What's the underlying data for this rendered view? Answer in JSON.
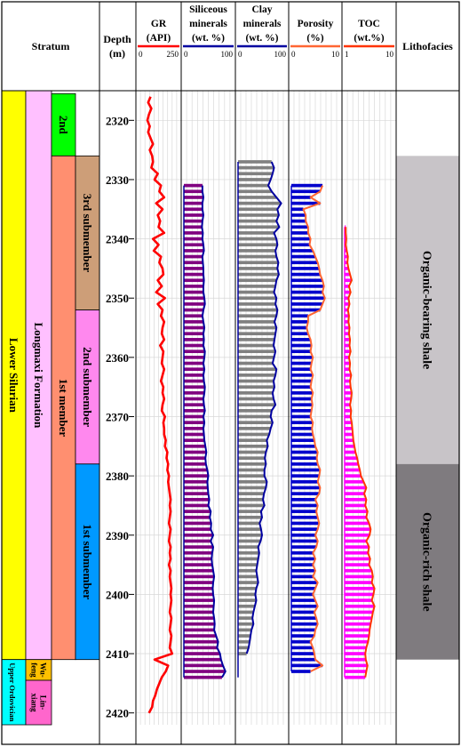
{
  "chart_data": {
    "type": "well-log",
    "y_axis": {
      "label_line1": "Depth",
      "label_line2": "(m)",
      "min": 2315,
      "max": 2422,
      "ticks": [
        2320,
        2330,
        2340,
        2350,
        2360,
        2370,
        2380,
        2390,
        2400,
        2410,
        2420
      ]
    },
    "headers": {
      "stratum": "Stratum",
      "lithofacies": "Lithofacies"
    },
    "stratum_units": [
      {
        "label": "Lower Silurian",
        "top": 2315,
        "base": 2411,
        "color": "#ffff00"
      },
      {
        "label": "Upper Ordovician",
        "top": 2411,
        "base": 2422,
        "color": "#00ffff"
      },
      {
        "label": "Longmaxi Formation",
        "top": 2315,
        "base": 2411,
        "color": "#ffc0ff"
      },
      {
        "label": "Wu-feng",
        "top": 2411,
        "base": 2414.5,
        "color": "#ffc000"
      },
      {
        "label": "Lin-xiang",
        "top": 2414.5,
        "base": 2422,
        "color": "#ff66cc"
      },
      {
        "label": "2nd",
        "top": 2315,
        "base": 2326,
        "color": "#00ff00"
      },
      {
        "label": "1st member",
        "top": 2326,
        "base": 2411,
        "color": "#ff8f70"
      },
      {
        "label": "3rd submember",
        "top": 2326,
        "base": 2352,
        "color": "#cd9e78"
      },
      {
        "label": "2nd submember",
        "top": 2352,
        "base": 2378,
        "color": "#ff88ee"
      },
      {
        "label": "1st submember",
        "top": 2378,
        "base": 2411,
        "color": "#0099ff"
      }
    ],
    "tracks": [
      {
        "name": "GR",
        "unit": "(API)",
        "min": 0,
        "max": 250,
        "min_label": "0",
        "max_label": "250",
        "color": "#ff0000",
        "depths": [
          2316,
          2317,
          2318,
          2319,
          2320,
          2321,
          2322,
          2323,
          2324,
          2325,
          2326,
          2327,
          2328,
          2329,
          2330,
          2331,
          2332,
          2333,
          2334,
          2335,
          2336,
          2337,
          2338,
          2339,
          2340,
          2341,
          2342,
          2343,
          2344,
          2345,
          2346,
          2347,
          2348,
          2349,
          2350,
          2351,
          2352,
          2353,
          2354,
          2355,
          2356,
          2357,
          2358,
          2359,
          2360,
          2361,
          2362,
          2363,
          2364,
          2365,
          2366,
          2367,
          2368,
          2369,
          2370,
          2371,
          2372,
          2373,
          2374,
          2375,
          2376,
          2377,
          2378,
          2379,
          2380,
          2381,
          2382,
          2383,
          2384,
          2385,
          2386,
          2387,
          2388,
          2389,
          2390,
          2391,
          2392,
          2393,
          2394,
          2395,
          2396,
          2397,
          2398,
          2399,
          2400,
          2401,
          2402,
          2403,
          2404,
          2405,
          2406,
          2407,
          2408,
          2409,
          2410,
          2411,
          2412,
          2413,
          2414,
          2415,
          2416,
          2417,
          2418,
          2419,
          2420
        ],
        "values": [
          75,
          60,
          80,
          65,
          55,
          70,
          60,
          75,
          90,
          70,
          85,
          90,
          80,
          120,
          100,
          140,
          130,
          160,
          110,
          150,
          120,
          135,
          125,
          160,
          90,
          125,
          95,
          140,
          130,
          150,
          155,
          120,
          145,
          110,
          165,
          120,
          150,
          140,
          160,
          150,
          145,
          160,
          135,
          155,
          150,
          145,
          160,
          150,
          140,
          155,
          150,
          160,
          150,
          145,
          165,
          155,
          160,
          160,
          170,
          165,
          180,
          175,
          185,
          180,
          190,
          185,
          190,
          195,
          200,
          195,
          200,
          195,
          190,
          200,
          195,
          190,
          200,
          195,
          200,
          190,
          200,
          195,
          200,
          205,
          200,
          205,
          200,
          195,
          205,
          200,
          195,
          205,
          200,
          195,
          210,
          100,
          185,
          170,
          145,
          130,
          115,
          105,
          90,
          85,
          65
        ]
      },
      {
        "name": "Siliceous",
        "name_line2": "minerals",
        "unit": "(wt. %)",
        "min": 0,
        "max": 100,
        "min_label": "0",
        "max_label": "100",
        "color": "#0000a0",
        "fill": "#800080",
        "depths": [
          2331,
          2332,
          2333,
          2334,
          2335,
          2336,
          2337,
          2338,
          2339,
          2340,
          2341,
          2342,
          2343,
          2344,
          2345,
          2346,
          2347,
          2348,
          2349,
          2350,
          2351,
          2352,
          2353,
          2354,
          2355,
          2356,
          2357,
          2358,
          2359,
          2360,
          2361,
          2362,
          2363,
          2364,
          2365,
          2366,
          2367,
          2368,
          2369,
          2370,
          2371,
          2372,
          2373,
          2374,
          2375,
          2376,
          2377,
          2378,
          2379,
          2380,
          2381,
          2382,
          2383,
          2384,
          2385,
          2386,
          2387,
          2388,
          2389,
          2390,
          2391,
          2392,
          2393,
          2394,
          2395,
          2396,
          2397,
          2398,
          2399,
          2400,
          2401,
          2402,
          2403,
          2404,
          2405,
          2406,
          2407,
          2408,
          2409,
          2410,
          2411,
          2412,
          2413,
          2414
        ],
        "values": [
          38,
          38,
          40,
          38,
          38,
          40,
          38,
          37,
          39,
          38,
          40,
          41,
          38,
          39,
          40,
          40,
          41,
          40,
          40,
          42,
          43,
          40,
          38,
          40,
          42,
          40,
          41,
          40,
          43,
          42,
          40,
          42,
          40,
          41,
          43,
          42,
          40,
          41,
          43,
          40,
          42,
          40,
          41,
          42,
          44,
          46,
          44,
          45,
          48,
          50,
          48,
          49,
          50,
          52,
          50,
          55,
          53,
          56,
          55,
          60,
          55,
          60,
          58,
          57,
          58,
          60,
          62,
          60,
          59,
          60,
          62,
          61,
          60,
          62,
          63,
          62,
          66,
          70,
          68,
          74,
          76,
          80,
          85,
          78
        ]
      },
      {
        "name": "Clay",
        "name_line2": "minerals",
        "unit": "(wt. %)",
        "min": 0,
        "max": 100,
        "min_label": "0",
        "max_label": "100",
        "color": "#0000a0",
        "fill": "#808080",
        "depths": [
          2327,
          2328,
          2329,
          2330,
          2331,
          2332,
          2333,
          2334,
          2335,
          2336,
          2337,
          2338,
          2339,
          2340,
          2341,
          2342,
          2343,
          2344,
          2345,
          2346,
          2347,
          2348,
          2349,
          2350,
          2351,
          2352,
          2353,
          2354,
          2355,
          2356,
          2357,
          2358,
          2359,
          2360,
          2361,
          2362,
          2363,
          2364,
          2365,
          2366,
          2367,
          2368,
          2369,
          2370,
          2371,
          2372,
          2373,
          2374,
          2375,
          2376,
          2377,
          2378,
          2379,
          2380,
          2381,
          2382,
          2383,
          2384,
          2385,
          2386,
          2387,
          2388,
          2389,
          2390,
          2391,
          2392,
          2393,
          2394,
          2395,
          2396,
          2397,
          2398,
          2399,
          2400,
          2401,
          2402,
          2403,
          2404,
          2405,
          2406,
          2407,
          2408,
          2409,
          2410,
          2411,
          2412,
          2413,
          2414
        ],
        "values": [
          70,
          75,
          72,
          68,
          63,
          70,
          80,
          90,
          82,
          85,
          80,
          86,
          75,
          80,
          82,
          78,
          80,
          84,
          82,
          85,
          80,
          78,
          75,
          80,
          78,
          82,
          80,
          76,
          80,
          78,
          76,
          74,
          78,
          75,
          72,
          80,
          78,
          74,
          76,
          72,
          74,
          78,
          70,
          68,
          72,
          68,
          65,
          60,
          62,
          58,
          56,
          58,
          55,
          55,
          60,
          58,
          54,
          52,
          55,
          48,
          50,
          45,
          48,
          50,
          47,
          42,
          44,
          42,
          40,
          38,
          40,
          42,
          38,
          36,
          38,
          35,
          32,
          30,
          32,
          28,
          26,
          24,
          22,
          18
        ]
      },
      {
        "name": "Porosity",
        "unit": "(%)",
        "min": 0,
        "max": 10,
        "min_label": "0",
        "max_label": "10",
        "color": "#ff6633",
        "fill": "#0000cc",
        "depths": [
          2331,
          2332,
          2333,
          2334,
          2335,
          2336,
          2337,
          2338,
          2339,
          2340,
          2341,
          2342,
          2343,
          2344,
          2345,
          2346,
          2347,
          2348,
          2349,
          2350,
          2351,
          2352,
          2353,
          2354,
          2355,
          2356,
          2357,
          2358,
          2359,
          2360,
          2361,
          2362,
          2363,
          2364,
          2365,
          2366,
          2367,
          2368,
          2369,
          2370,
          2371,
          2372,
          2373,
          2374,
          2375,
          2376,
          2377,
          2378,
          2379,
          2380,
          2381,
          2382,
          2383,
          2384,
          2385,
          2386,
          2387,
          2388,
          2389,
          2390,
          2391,
          2392,
          2393,
          2394,
          2395,
          2396,
          2397,
          2398,
          2399,
          2400,
          2401,
          2402,
          2403,
          2404,
          2405,
          2406,
          2407,
          2408,
          2409,
          2410,
          2411,
          2412,
          2413
        ],
        "values": [
          6.5,
          6.0,
          4.0,
          6.0,
          2.5,
          3.0,
          3.0,
          3.5,
          3.5,
          4.0,
          3.8,
          4.5,
          5.0,
          5.5,
          5.8,
          6.0,
          6.5,
          6.8,
          6.5,
          7.0,
          6.5,
          6.0,
          3.5,
          3.5,
          3.2,
          3.5,
          4.0,
          4.2,
          4.0,
          4.5,
          4.2,
          4.0,
          4.5,
          4.2,
          4.0,
          4.5,
          4.2,
          4.4,
          4.2,
          4.0,
          4.5,
          4.3,
          4.5,
          4.8,
          5.0,
          5.5,
          5.3,
          5.5,
          6.0,
          5.8,
          5.5,
          6.0,
          5.8,
          5.0,
          5.5,
          5.2,
          5.5,
          5.8,
          5.5,
          5.0,
          5.5,
          5.2,
          4.5,
          5.0,
          4.5,
          5.0,
          4.5,
          5.5,
          5.0,
          4.5,
          5.0,
          5.5,
          4.8,
          5.2,
          5.5,
          5.0,
          4.8,
          4.0,
          4.5,
          4.8,
          5.0,
          6.5,
          4.0
        ]
      },
      {
        "name": "TOC",
        "unit": "(wt.%)",
        "min": 1,
        "max": 10,
        "min_label": "1",
        "max_label": "10",
        "color": "#ff3300",
        "fill": "#ff00ff",
        "depths": [
          2338,
          2339,
          2340,
          2341,
          2342,
          2343,
          2344,
          2345,
          2346,
          2347,
          2348,
          2349,
          2350,
          2351,
          2352,
          2353,
          2354,
          2355,
          2356,
          2357,
          2358,
          2359,
          2360,
          2361,
          2362,
          2363,
          2364,
          2365,
          2366,
          2367,
          2368,
          2369,
          2370,
          2371,
          2372,
          2373,
          2374,
          2375,
          2376,
          2377,
          2378,
          2379,
          2380,
          2381,
          2382,
          2383,
          2384,
          2385,
          2386,
          2387,
          2388,
          2389,
          2390,
          2391,
          2392,
          2393,
          2394,
          2395,
          2396,
          2397,
          2398,
          2399,
          2400,
          2401,
          2402,
          2403,
          2404,
          2405,
          2406,
          2407,
          2408,
          2409,
          2410,
          2411,
          2412,
          2413,
          2414
        ],
        "values": [
          1.2,
          1.2,
          1.3,
          1.2,
          1.4,
          1.6,
          1.5,
          1.7,
          2.0,
          2.3,
          1.8,
          2.1,
          1.7,
          1.9,
          1.6,
          1.8,
          1.7,
          1.9,
          1.8,
          2.0,
          1.9,
          2.1,
          1.8,
          2.0,
          1.9,
          2.2,
          2.0,
          2.1,
          2.3,
          2.2,
          2.0,
          2.2,
          2.1,
          2.3,
          2.4,
          2.5,
          2.6,
          2.8,
          3.0,
          3.3,
          3.5,
          3.8,
          4.0,
          4.5,
          5.0,
          4.6,
          5.0,
          4.8,
          5.2,
          5.0,
          5.5,
          5.8,
          5.6,
          5.0,
          5.5,
          5.3,
          5.7,
          5.5,
          6.0,
          6.2,
          6.0,
          6.5,
          6.3,
          6.0,
          6.5,
          6.2,
          6.0,
          5.8,
          5.6,
          5.5,
          5.3,
          5.0,
          4.8,
          4.9,
          5.2,
          5.0,
          4.8
        ]
      }
    ],
    "lithofacies": [
      {
        "label": "Organic-bearing shale",
        "top": 2326,
        "base": 2378,
        "color": "#c8c4c8"
      },
      {
        "label": "Organic-rich shale",
        "top": 2378,
        "base": 2411,
        "color": "#7f7b7f"
      }
    ]
  }
}
